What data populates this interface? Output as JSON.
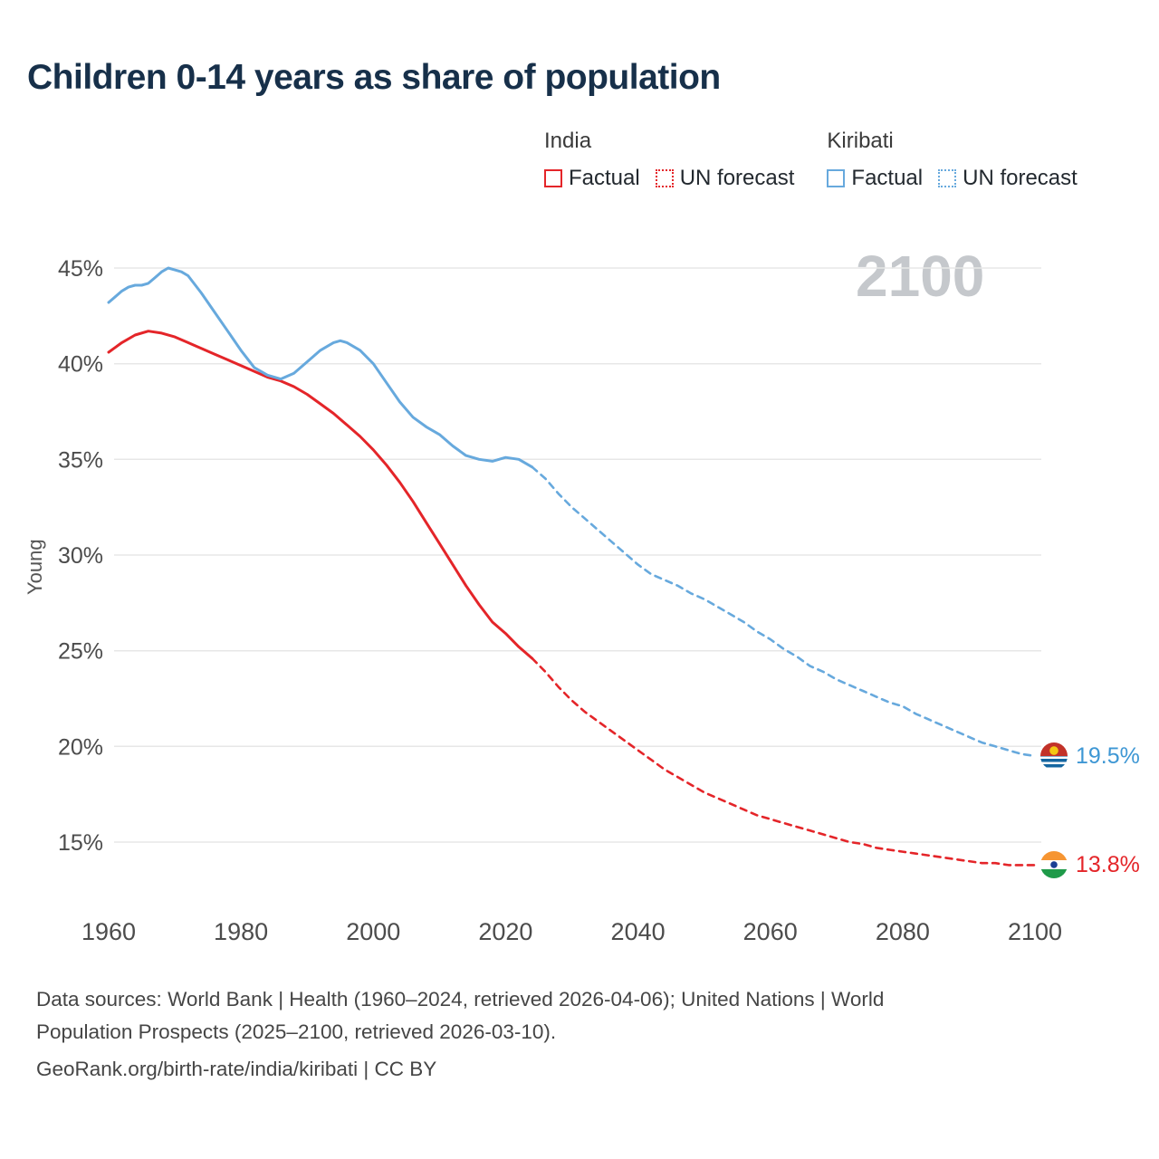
{
  "title": "Children 0-14 years as share of population",
  "watermark": "2100",
  "legend": {
    "groups": [
      {
        "country": "India",
        "color": "#e42529",
        "items": [
          {
            "label": "Factual",
            "style": "solid"
          },
          {
            "label": "UN forecast",
            "style": "dashed"
          }
        ]
      },
      {
        "country": "Kiribati",
        "color": "#67a9dd",
        "items": [
          {
            "label": "Factual",
            "style": "solid"
          },
          {
            "label": "UN forecast",
            "style": "dashed"
          }
        ]
      }
    ]
  },
  "chart_data": {
    "type": "line",
    "title": "Children 0-14 years as share of population",
    "xlabel": "",
    "ylabel": "Young",
    "xlim": [
      1955,
      2115
    ],
    "ylim": [
      13,
      46.5
    ],
    "x_ticks": [
      1960,
      1980,
      2000,
      2020,
      2040,
      2060,
      2080,
      2100
    ],
    "y_ticks": [
      15,
      20,
      25,
      30,
      35,
      40,
      45
    ],
    "y_tick_suffix": "%",
    "grid": true,
    "legend_position": "top-right",
    "series": [
      {
        "name": "India Factual",
        "color": "#e42529",
        "dash": "solid",
        "points": [
          [
            1960,
            40.6
          ],
          [
            1962,
            41.1
          ],
          [
            1964,
            41.5
          ],
          [
            1966,
            41.7
          ],
          [
            1968,
            41.6
          ],
          [
            1970,
            41.4
          ],
          [
            1972,
            41.1
          ],
          [
            1974,
            40.8
          ],
          [
            1976,
            40.5
          ],
          [
            1978,
            40.2
          ],
          [
            1980,
            39.9
          ],
          [
            1982,
            39.6
          ],
          [
            1984,
            39.3
          ],
          [
            1986,
            39.1
          ],
          [
            1988,
            38.8
          ],
          [
            1990,
            38.4
          ],
          [
            1992,
            37.9
          ],
          [
            1994,
            37.4
          ],
          [
            1996,
            36.8
          ],
          [
            1998,
            36.2
          ],
          [
            2000,
            35.5
          ],
          [
            2002,
            34.7
          ],
          [
            2004,
            33.8
          ],
          [
            2006,
            32.8
          ],
          [
            2008,
            31.7
          ],
          [
            2010,
            30.6
          ],
          [
            2012,
            29.5
          ],
          [
            2014,
            28.4
          ],
          [
            2016,
            27.4
          ],
          [
            2018,
            26.5
          ],
          [
            2020,
            25.9
          ],
          [
            2022,
            25.2
          ],
          [
            2024,
            24.6
          ]
        ]
      },
      {
        "name": "India UN forecast",
        "color": "#e42529",
        "dash": "dashed",
        "points": [
          [
            2024,
            24.6
          ],
          [
            2026,
            23.9
          ],
          [
            2028,
            23.1
          ],
          [
            2030,
            22.4
          ],
          [
            2032,
            21.8
          ],
          [
            2034,
            21.3
          ],
          [
            2036,
            20.8
          ],
          [
            2038,
            20.3
          ],
          [
            2040,
            19.8
          ],
          [
            2042,
            19.3
          ],
          [
            2044,
            18.8
          ],
          [
            2046,
            18.4
          ],
          [
            2048,
            18.0
          ],
          [
            2050,
            17.6
          ],
          [
            2052,
            17.3
          ],
          [
            2054,
            17.0
          ],
          [
            2056,
            16.7
          ],
          [
            2058,
            16.4
          ],
          [
            2060,
            16.2
          ],
          [
            2062,
            16.0
          ],
          [
            2064,
            15.8
          ],
          [
            2066,
            15.6
          ],
          [
            2068,
            15.4
          ],
          [
            2070,
            15.2
          ],
          [
            2072,
            15.0
          ],
          [
            2074,
            14.9
          ],
          [
            2076,
            14.7
          ],
          [
            2078,
            14.6
          ],
          [
            2080,
            14.5
          ],
          [
            2082,
            14.4
          ],
          [
            2084,
            14.3
          ],
          [
            2086,
            14.2
          ],
          [
            2088,
            14.1
          ],
          [
            2090,
            14.0
          ],
          [
            2092,
            13.9
          ],
          [
            2094,
            13.9
          ],
          [
            2096,
            13.8
          ],
          [
            2098,
            13.8
          ],
          [
            2100,
            13.8
          ]
        ]
      },
      {
        "name": "Kiribati Factual",
        "color": "#67a9dd",
        "dash": "solid",
        "points": [
          [
            1960,
            43.2
          ],
          [
            1962,
            43.8
          ],
          [
            1963,
            44.0
          ],
          [
            1964,
            44.1
          ],
          [
            1965,
            44.1
          ],
          [
            1966,
            44.2
          ],
          [
            1967,
            44.5
          ],
          [
            1968,
            44.8
          ],
          [
            1969,
            45.0
          ],
          [
            1970,
            44.9
          ],
          [
            1971,
            44.8
          ],
          [
            1972,
            44.6
          ],
          [
            1974,
            43.7
          ],
          [
            1976,
            42.7
          ],
          [
            1978,
            41.7
          ],
          [
            1980,
            40.7
          ],
          [
            1982,
            39.8
          ],
          [
            1984,
            39.4
          ],
          [
            1986,
            39.2
          ],
          [
            1988,
            39.5
          ],
          [
            1990,
            40.1
          ],
          [
            1992,
            40.7
          ],
          [
            1994,
            41.1
          ],
          [
            1995,
            41.2
          ],
          [
            1996,
            41.1
          ],
          [
            1998,
            40.7
          ],
          [
            2000,
            40.0
          ],
          [
            2002,
            39.0
          ],
          [
            2004,
            38.0
          ],
          [
            2006,
            37.2
          ],
          [
            2008,
            36.7
          ],
          [
            2010,
            36.3
          ],
          [
            2012,
            35.7
          ],
          [
            2014,
            35.2
          ],
          [
            2016,
            35.0
          ],
          [
            2018,
            34.9
          ],
          [
            2020,
            35.1
          ],
          [
            2022,
            35.0
          ],
          [
            2024,
            34.6
          ]
        ]
      },
      {
        "name": "Kiribati UN forecast",
        "color": "#67a9dd",
        "dash": "dashed",
        "points": [
          [
            2024,
            34.6
          ],
          [
            2026,
            34.0
          ],
          [
            2028,
            33.2
          ],
          [
            2030,
            32.5
          ],
          [
            2032,
            31.9
          ],
          [
            2034,
            31.3
          ],
          [
            2036,
            30.7
          ],
          [
            2038,
            30.1
          ],
          [
            2040,
            29.5
          ],
          [
            2042,
            29.0
          ],
          [
            2044,
            28.7
          ],
          [
            2046,
            28.4
          ],
          [
            2048,
            28.0
          ],
          [
            2050,
            27.7
          ],
          [
            2052,
            27.3
          ],
          [
            2054,
            26.9
          ],
          [
            2056,
            26.5
          ],
          [
            2058,
            26.0
          ],
          [
            2060,
            25.6
          ],
          [
            2062,
            25.1
          ],
          [
            2064,
            24.7
          ],
          [
            2066,
            24.2
          ],
          [
            2068,
            23.9
          ],
          [
            2070,
            23.5
          ],
          [
            2072,
            23.2
          ],
          [
            2074,
            22.9
          ],
          [
            2076,
            22.6
          ],
          [
            2078,
            22.3
          ],
          [
            2080,
            22.1
          ],
          [
            2082,
            21.7
          ],
          [
            2084,
            21.4
          ],
          [
            2086,
            21.1
          ],
          [
            2088,
            20.8
          ],
          [
            2090,
            20.5
          ],
          [
            2092,
            20.2
          ],
          [
            2094,
            20.0
          ],
          [
            2096,
            19.8
          ],
          [
            2098,
            19.6
          ],
          [
            2100,
            19.5
          ]
        ]
      }
    ],
    "end_labels": [
      {
        "series": "Kiribati",
        "value": 19.5,
        "value_label": "19.5%",
        "flag": "kiribati-flag-icon",
        "color": "#3e97d4"
      },
      {
        "series": "India",
        "value": 13.8,
        "value_label": "13.8%",
        "flag": "india-flag-icon",
        "color": "#e42529"
      }
    ]
  },
  "footer": {
    "lines": [
      "Data sources: World Bank | Health (1960–2024, retrieved 2026-04-06); United Nations | World",
      "Population Prospects (2025–2100, retrieved 2026-03-10).",
      "GeoRank.org/birth-rate/india/kiribati | CC BY"
    ]
  }
}
